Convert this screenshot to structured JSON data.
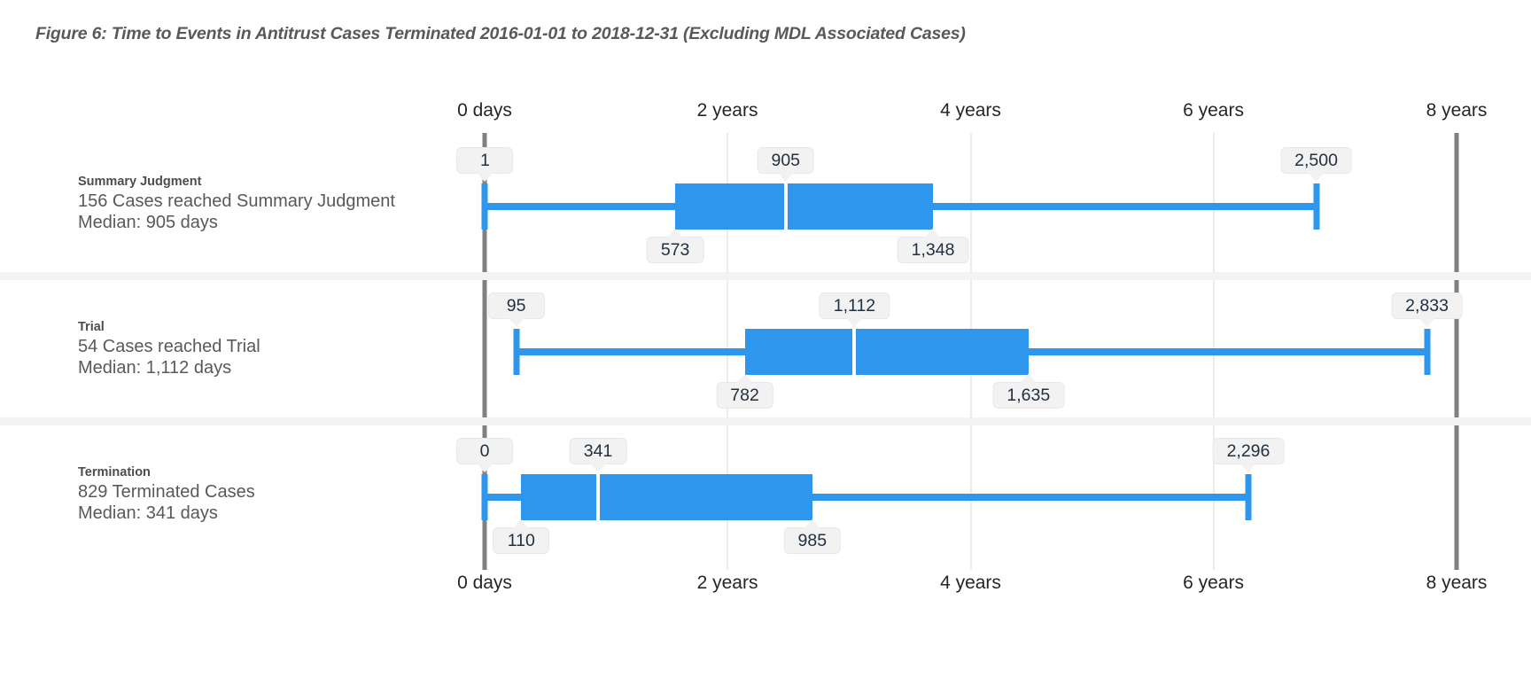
{
  "title": "Figure 6: Time to Events in Antitrust Cases Terminated 2016-01-01 to 2018-12-31 (Excluding MDL Associated Cases)",
  "axis": {
    "max_days": 2922,
    "ticks": [
      {
        "label": "0 days",
        "days": 0,
        "heavy": true
      },
      {
        "label": "2 years",
        "days": 730,
        "heavy": false
      },
      {
        "label": "4 years",
        "days": 1461,
        "heavy": false
      },
      {
        "label": "6 years",
        "days": 2191,
        "heavy": false
      },
      {
        "label": "8 years",
        "days": 2922,
        "heavy": true
      }
    ]
  },
  "colors": {
    "box_blue": "#2E96EC",
    "axis_heavy_line": "#808080",
    "gridline": "#D9D9D9",
    "callout_bg": "#F2F2F2",
    "callout_text": "#22303F",
    "row_separator": "#F3F3F3",
    "title_text": "#595959",
    "label_text": "#595959"
  },
  "chart_data": {
    "type": "boxplot",
    "orientation": "horizontal",
    "unit": "days",
    "title": "Figure 6: Time to Events in Antitrust Cases Terminated 2016-01-01 to 2018-12-31 (Excluding MDL Associated Cases)",
    "x_axis": {
      "tick_labels": [
        "0 days",
        "2 years",
        "4 years",
        "6 years",
        "8 years"
      ],
      "range_days": [
        0,
        2922
      ],
      "shown_top_and_bottom": true,
      "grid": true
    },
    "series": [
      {
        "name": "Summary Judgment",
        "cases_line": "156 Cases reached Summary Judgment",
        "median_line": "Median: 905 days",
        "min": 1,
        "q1": 573,
        "median": 905,
        "q3": 1348,
        "max": 2500,
        "labels": {
          "min": "1",
          "q1": "573",
          "median": "905",
          "q3": "1,348",
          "max": "2,500"
        }
      },
      {
        "name": "Trial",
        "cases_line": "54 Cases reached Trial",
        "median_line": "Median: 1,112 days",
        "min": 95,
        "q1": 782,
        "median": 1112,
        "q3": 1635,
        "max": 2833,
        "labels": {
          "min": "95",
          "q1": "782",
          "median": "1,112",
          "q3": "1,635",
          "max": "2,833"
        }
      },
      {
        "name": "Termination",
        "cases_line": "829 Terminated Cases",
        "median_line": "Median: 341 days",
        "min": 0,
        "q1": 110,
        "median": 341,
        "q3": 985,
        "max": 2296,
        "labels": {
          "min": "0",
          "q1": "110",
          "median": "341",
          "q3": "985",
          "max": "2,296"
        }
      }
    ]
  }
}
